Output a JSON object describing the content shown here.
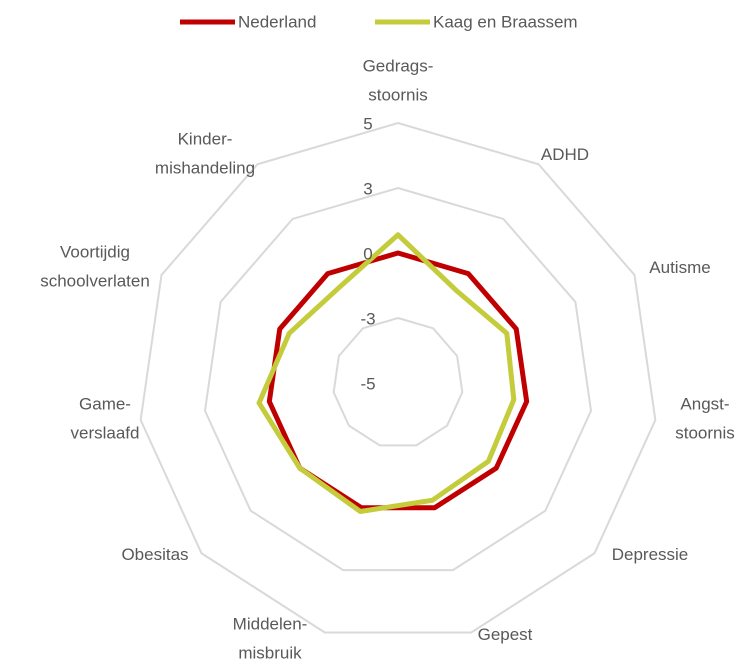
{
  "chart_data": {
    "type": "radar",
    "categories": [
      [
        "Gedrags-",
        "stoornis"
      ],
      [
        "ADHD"
      ],
      [
        "Autisme"
      ],
      [
        "Angst-",
        "stoornis"
      ],
      [
        "Depressie"
      ],
      [
        "Gepest"
      ],
      [
        "Middelen-",
        "misbruik"
      ],
      [
        "Obesitas"
      ],
      [
        "Game-",
        "verslaafd"
      ],
      [
        "Voortijdig",
        "schoolverlaten"
      ],
      [
        "Kinder-",
        "mishandeling"
      ]
    ],
    "series": [
      {
        "name": "Nederland",
        "color": "#c00000",
        "values": [
          0,
          0,
          0,
          0,
          0,
          0,
          0,
          0,
          0,
          0,
          0
        ]
      },
      {
        "name": "Kaag en Braassem",
        "color": "#c4cc3c",
        "values": [
          0.7,
          -0.8,
          -0.4,
          -0.5,
          -0.4,
          -0.3,
          0.15,
          0,
          0.4,
          -0.4,
          -0.7
        ]
      }
    ],
    "ylim": [
      -5,
      5
    ],
    "yticks": [
      -5,
      {
        "value": -2.5,
        "label": "-3"
      },
      0,
      {
        "value": 2.5,
        "label": "3"
      },
      5
    ],
    "grid": true,
    "legend": "top"
  }
}
